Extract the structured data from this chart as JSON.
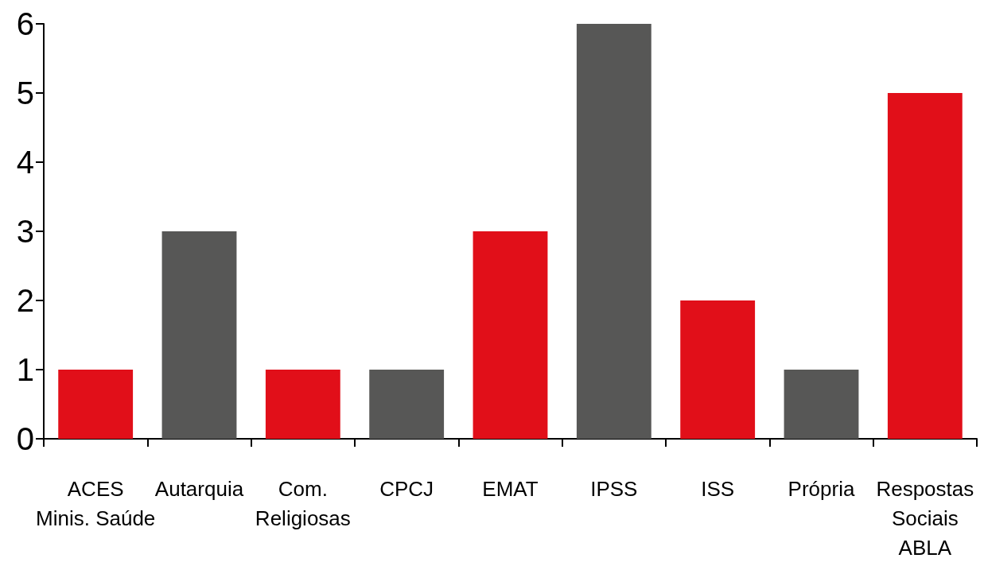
{
  "chart_data": {
    "type": "bar",
    "categories": [
      "ACES\nMinis. Saúde",
      "Autarquia",
      "Com.\nReligiosas",
      "CPCJ",
      "EMAT",
      "IPSS",
      "ISS",
      "Própria",
      "Respostas\nSociais\nABLA"
    ],
    "values": [
      1,
      3,
      1,
      1,
      3,
      6,
      2,
      1,
      5
    ],
    "colors": [
      "#e10f19",
      "#575756",
      "#e10f19",
      "#575756",
      "#e10f19",
      "#575756",
      "#e10f19",
      "#575756",
      "#e10f19"
    ],
    "ylim": [
      0,
      6
    ],
    "yticks": [
      0,
      1,
      2,
      3,
      4,
      5,
      6
    ]
  }
}
